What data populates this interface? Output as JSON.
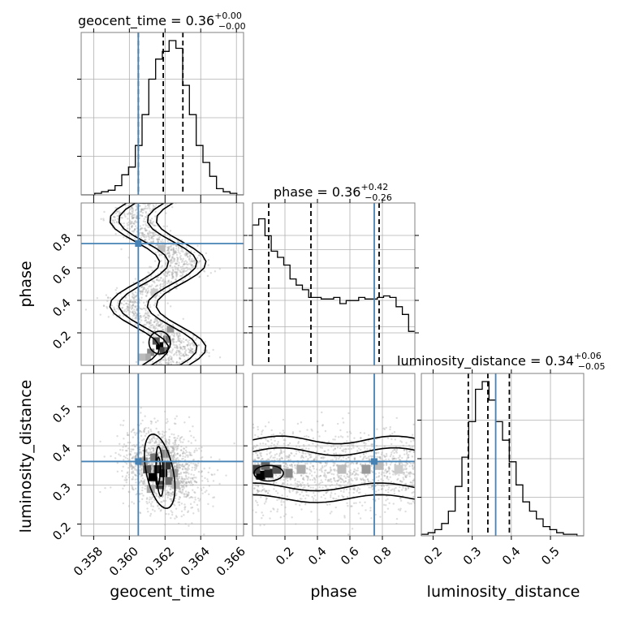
{
  "chart_data": {
    "type": "corner",
    "parameters": [
      "geocent_time",
      "phase",
      "luminosity_distance"
    ],
    "axis_labels": {
      "geocent_time": "geocent_time",
      "phase": "phase",
      "luminosity_distance": "luminosity_distance"
    },
    "titles": {
      "geocent_time": {
        "name": "geocent_time",
        "median": "0.36",
        "plus": "+0.00",
        "minus": "−0.00"
      },
      "phase": {
        "name": "phase",
        "median": "0.36",
        "plus": "+0.42",
        "minus": "−0.26"
      },
      "luminosity_distance": {
        "name": "luminosity_distance",
        "median": "0.34",
        "plus": "+0.06",
        "minus": "−0.05"
      }
    },
    "ranges": {
      "geocent_time": [
        0.3573,
        0.3664
      ],
      "phase": [
        0.0,
        1.0
      ],
      "luminosity_distance": [
        0.17,
        0.585
      ]
    },
    "ticks": {
      "geocent_time": [
        0.358,
        0.36,
        0.362,
        0.364,
        0.366
      ],
      "phase_x": [
        0.2,
        0.4,
        0.6,
        0.8
      ],
      "phase_y": [
        0.2,
        0.4,
        0.6,
        0.8
      ],
      "luminosity_distance_x": [
        0.2,
        0.3,
        0.4,
        0.5
      ],
      "luminosity_distance_y": [
        0.2,
        0.3,
        0.4,
        0.5
      ]
    },
    "tick_labels": {
      "geocent_time": [
        "0.358",
        "0.360",
        "0.362",
        "0.364",
        "0.366"
      ],
      "phase_x": [
        "0.2",
        "0.4",
        "0.6",
        "0.8"
      ],
      "phase_y": [
        "0.2",
        "0.4",
        "0.6",
        "0.8"
      ],
      "luminosity_distance_x": [
        "0.2",
        "0.3",
        "0.4",
        "0.5"
      ],
      "luminosity_distance_y": [
        "0.2",
        "0.3",
        "0.4",
        "0.5"
      ]
    },
    "truths": {
      "geocent_time": 0.3605,
      "phase": 0.75,
      "luminosity_distance": 0.36
    },
    "quantiles": {
      "geocent_time": [
        0.3605,
        0.3619,
        0.363
      ],
      "phase": [
        0.1,
        0.36,
        0.78
      ],
      "luminosity_distance": [
        0.29,
        0.34,
        0.395
      ]
    },
    "histograms": {
      "geocent_time": [
        0,
        0,
        0.01,
        0.02,
        0.03,
        0.06,
        0.13,
        0.18,
        0.32,
        0.52,
        0.75,
        0.88,
        0.93,
        1.0,
        0.95,
        0.71,
        0.52,
        0.32,
        0.21,
        0.12,
        0.04,
        0.02,
        0.01,
        0.0
      ],
      "phase": [
        0.91,
        0.95,
        0.84,
        0.74,
        0.7,
        0.65,
        0.56,
        0.52,
        0.49,
        0.44,
        0.44,
        0.43,
        0.43,
        0.44,
        0.4,
        0.42,
        0.42,
        0.44,
        0.43,
        0.43,
        0.44,
        0.45,
        0.44,
        0.38,
        0.33,
        0.22
      ],
      "luminosity_distance": [
        0.01,
        0.02,
        0.04,
        0.08,
        0.16,
        0.32,
        0.51,
        0.74,
        0.95,
        1.0,
        0.88,
        0.74,
        0.62,
        0.48,
        0.33,
        0.22,
        0.16,
        0.11,
        0.06,
        0.04,
        0.02,
        0.01,
        0.01,
        0.0
      ]
    },
    "grid": true,
    "colors": {
      "truth": "#4682b4",
      "hist": "#000000",
      "quantile": "#000000",
      "grid": "#b0b0b0",
      "points": "#9e9e9e"
    }
  }
}
